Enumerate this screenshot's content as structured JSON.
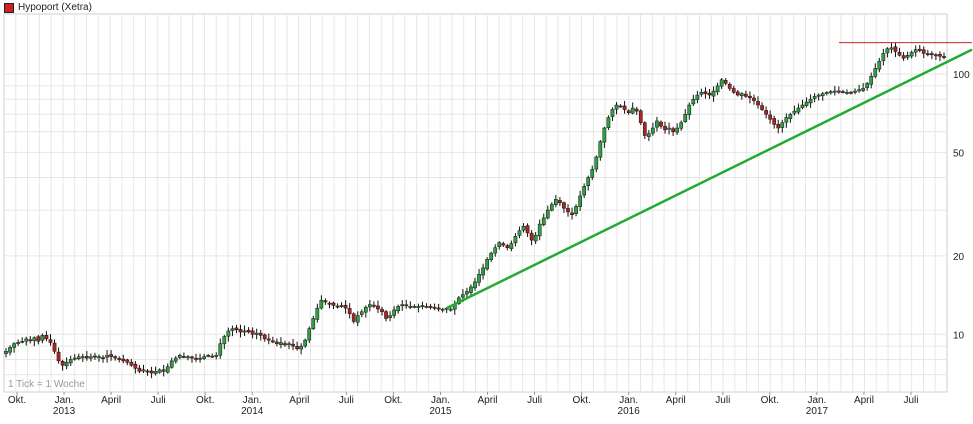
{
  "legend": {
    "label": "Hypoport (Xetra)",
    "swatch_color": "#cc2222"
  },
  "footer_note": "1 Tick = 1 Woche",
  "chart_data": {
    "type": "candlestick",
    "title": "",
    "series_name": "Hypoport (Xetra)",
    "y_scale": "log",
    "ylim": [
      6,
      170
    ],
    "y_ticks": [
      10,
      20,
      50,
      100
    ],
    "grid": true,
    "legend_position": "top-left",
    "x_tick_labels": [
      {
        "month": "Okt.",
        "year": ""
      },
      {
        "month": "Jan.",
        "year": "2013"
      },
      {
        "month": "April",
        "year": ""
      },
      {
        "month": "Juli",
        "year": ""
      },
      {
        "month": "Okt.",
        "year": ""
      },
      {
        "month": "Jan.",
        "year": "2014"
      },
      {
        "month": "April",
        "year": ""
      },
      {
        "month": "Juli",
        "year": ""
      },
      {
        "month": "Okt.",
        "year": ""
      },
      {
        "month": "Jan.",
        "year": "2015"
      },
      {
        "month": "April",
        "year": ""
      },
      {
        "month": "Juli",
        "year": ""
      },
      {
        "month": "Okt.",
        "year": ""
      },
      {
        "month": "Jan.",
        "year": "2016"
      },
      {
        "month": "April",
        "year": ""
      },
      {
        "month": "Juli",
        "year": ""
      },
      {
        "month": "Okt.",
        "year": ""
      },
      {
        "month": "Jan.",
        "year": "2017"
      },
      {
        "month": "April",
        "year": ""
      },
      {
        "month": "Juli",
        "year": ""
      }
    ],
    "weekly_closes": [
      8.6,
      8.9,
      9.2,
      9.3,
      9.4,
      9.6,
      9.5,
      9.7,
      9.4,
      9.9,
      9.6,
      9.3,
      8.6,
      7.9,
      7.6,
      7.8,
      8.0,
      8.1,
      8.2,
      8.2,
      8.1,
      8.2,
      8.2,
      8.2,
      8.1,
      8.3,
      8.2,
      8.1,
      8.0,
      7.9,
      7.8,
      7.6,
      7.4,
      7.2,
      7.3,
      7.2,
      7.1,
      7.2,
      7.3,
      7.2,
      7.5,
      7.9,
      8.1,
      8.3,
      8.2,
      8.2,
      8.1,
      8.0,
      8.1,
      8.2,
      8.3,
      8.2,
      8.3,
      9.2,
      9.8,
      10.3,
      10.5,
      10.4,
      10.2,
      10.3,
      10.2,
      10.0,
      10.1,
      9.9,
      9.6,
      9.5,
      9.4,
      9.2,
      9.3,
      9.1,
      9.2,
      9.0,
      8.8,
      9.0,
      9.5,
      10.5,
      11.5,
      12.6,
      13.5,
      13.3,
      13.1,
      12.9,
      12.8,
      12.9,
      12.6,
      12.0,
      11.2,
      11.8,
      12.2,
      12.7,
      13.0,
      12.8,
      12.5,
      12.2,
      11.5,
      11.8,
      12.4,
      12.8,
      13.0,
      12.9,
      12.8,
      12.8,
      12.8,
      12.9,
      12.8,
      12.7,
      12.6,
      12.6,
      12.5,
      12.6,
      12.5,
      13.0,
      13.8,
      14.2,
      14.6,
      15.2,
      15.9,
      17.0,
      18.0,
      19.4,
      20.5,
      21.5,
      22.5,
      22.0,
      21.5,
      22.3,
      23.8,
      25.0,
      26.0,
      24.5,
      23.0,
      24.0,
      26.5,
      28.0,
      30.0,
      31.5,
      33.0,
      32.0,
      30.5,
      29.5,
      28.8,
      31.0,
      34.0,
      37.0,
      40.0,
      43.0,
      48.0,
      55.0,
      62.0,
      68.0,
      73.0,
      76.0,
      75.0,
      73.0,
      71.0,
      74.0,
      72.0,
      65.0,
      58.0,
      59.0,
      62.0,
      66.0,
      63.0,
      61.0,
      62.0,
      60.0,
      62.0,
      65.0,
      70.0,
      76.0,
      80.0,
      83.0,
      85.0,
      84.0,
      83.0,
      86.0,
      90.0,
      95.0,
      92.0,
      88.0,
      85.0,
      83.0,
      84.0,
      82.0,
      81.0,
      79.0,
      76.0,
      73.0,
      70.0,
      67.0,
      64.0,
      62.0,
      65.0,
      68.0,
      70.0,
      72.0,
      74.0,
      76.0,
      78.0,
      80.0,
      82.0,
      83.0,
      84.0,
      85.0,
      85.5,
      86.0,
      86.0,
      85.5,
      85.0,
      85.0,
      86.0,
      87.0,
      88.0,
      92.0,
      98.0,
      105.0,
      112.0,
      120.0,
      125.0,
      126.0,
      122.0,
      118.0,
      115.0,
      118.0,
      121.0,
      124.0,
      123.0,
      120.0,
      119.0,
      118.5,
      118.0,
      117.0,
      116.0
    ]
  }
}
